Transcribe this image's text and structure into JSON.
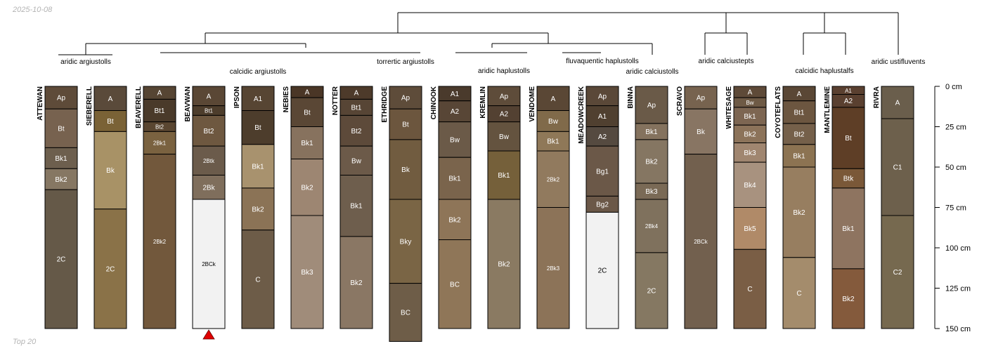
{
  "date_label": "2025-10-08",
  "footer_label": "Top 20",
  "depth_axis": {
    "unit": "cm",
    "max": 150,
    "ticks": [
      0,
      25,
      50,
      75,
      100,
      125,
      150
    ],
    "tick_labels": [
      "0 cm",
      "25 cm",
      "50 cm",
      "75 cm",
      "100 cm",
      "125 cm",
      "150 cm"
    ]
  },
  "group_labels": [
    "aridic argiustolls",
    "calcidic argiustolls",
    "torrertic argiustolls",
    "aridic haplustolls",
    "fluvaquentic haplustolls",
    "aridic calciustolls",
    "aridic calciustepts",
    "calcidic haplustalfs",
    "aridic ustifluvents"
  ],
  "profiles": [
    {
      "name": "ATTEWAN",
      "group": 0,
      "horizons": [
        {
          "name": "Ap",
          "top": 0,
          "bottom": 14,
          "color": "#5e4b39"
        },
        {
          "name": "Bt",
          "top": 14,
          "bottom": 38,
          "color": "#77624f"
        },
        {
          "name": "Bk1",
          "top": 38,
          "bottom": 51,
          "color": "#6d5f4e"
        },
        {
          "name": "Bk2",
          "top": 51,
          "bottom": 64,
          "color": "#867763"
        },
        {
          "name": "2C",
          "top": 64,
          "bottom": 150,
          "color": "#655948"
        }
      ]
    },
    {
      "name": "SIEBERELL",
      "group": 1,
      "horizons": [
        {
          "name": "A",
          "top": 0,
          "bottom": 15,
          "color": "#5a4a3a"
        },
        {
          "name": "Bt",
          "top": 15,
          "bottom": 28,
          "color": "#7a6236"
        },
        {
          "name": "Bk",
          "top": 28,
          "bottom": 76,
          "color": "#a89266"
        },
        {
          "name": "2C",
          "top": 76,
          "bottom": 150,
          "color": "#8a7248"
        }
      ]
    },
    {
      "name": "BEAVERELL",
      "group": 1,
      "horizons": [
        {
          "name": "A",
          "top": 0,
          "bottom": 8,
          "color": "#564533"
        },
        {
          "name": "Bt1",
          "top": 8,
          "bottom": 22,
          "color": "#4a3a2a"
        },
        {
          "name": "Bt2",
          "top": 22,
          "bottom": 28,
          "color": "#5a4631"
        },
        {
          "name": "2Bk1",
          "top": 28,
          "bottom": 42,
          "color": "#7a6240"
        },
        {
          "name": "2Bk2",
          "top": 42,
          "bottom": 150,
          "color": "#72583c"
        }
      ]
    },
    {
      "name": "BEAVWAN",
      "group": 1,
      "truncated": true,
      "horizons": [
        {
          "name": "A",
          "top": 0,
          "bottom": 12,
          "color": "#5a4735"
        },
        {
          "name": "Bt1",
          "top": 12,
          "bottom": 18,
          "color": "#4d3d2c"
        },
        {
          "name": "Bt2",
          "top": 18,
          "bottom": 37,
          "color": "#6e5840"
        },
        {
          "name": "2Btk",
          "top": 37,
          "bottom": 55,
          "color": "#6b5b4b"
        },
        {
          "name": "2Bk",
          "top": 55,
          "bottom": 70,
          "color": "#7f6e5c"
        },
        {
          "name": "2BCk",
          "top": 70,
          "bottom": 150,
          "color": "#f2f2f2"
        }
      ]
    },
    {
      "name": "IPSON",
      "group": 1,
      "horizons": [
        {
          "name": "A1",
          "top": 0,
          "bottom": 15,
          "color": "#574533"
        },
        {
          "name": "Bt",
          "top": 15,
          "bottom": 36,
          "color": "#4d3d2c"
        },
        {
          "name": "Bk1",
          "top": 36,
          "bottom": 63,
          "color": "#a8926e"
        },
        {
          "name": "Bk2",
          "top": 63,
          "bottom": 89,
          "color": "#8b7356"
        },
        {
          "name": "C",
          "top": 89,
          "bottom": 150,
          "color": "#6d5c48"
        }
      ]
    },
    {
      "name": "NEBIES",
      "group": 1,
      "horizons": [
        {
          "name": "A",
          "top": 0,
          "bottom": 7,
          "color": "#4a3626"
        },
        {
          "name": "Bt",
          "top": 7,
          "bottom": 25,
          "color": "#5a4735"
        },
        {
          "name": "Bk1",
          "top": 25,
          "bottom": 45,
          "color": "#87725e"
        },
        {
          "name": "Bk2",
          "top": 45,
          "bottom": 80,
          "color": "#9d8672"
        },
        {
          "name": "Bk3",
          "top": 80,
          "bottom": 150,
          "color": "#a08c7a"
        }
      ]
    },
    {
      "name": "NOTTER",
      "group": 1,
      "horizons": [
        {
          "name": "A",
          "top": 0,
          "bottom": 8,
          "color": "#4d3a2a"
        },
        {
          "name": "Bt1",
          "top": 8,
          "bottom": 18,
          "color": "#574535"
        },
        {
          "name": "Bt2",
          "top": 18,
          "bottom": 37,
          "color": "#5d4a3a"
        },
        {
          "name": "Bw",
          "top": 37,
          "bottom": 55,
          "color": "#6c5a49"
        },
        {
          "name": "Bk1",
          "top": 55,
          "bottom": 93,
          "color": "#6e5e4d"
        },
        {
          "name": "Bk2",
          "top": 93,
          "bottom": 150,
          "color": "#8a7764"
        }
      ]
    },
    {
      "name": "ETHRIDGE",
      "group": 2,
      "horizons": [
        {
          "name": "Ap",
          "top": 0,
          "bottom": 14,
          "color": "#5e4c3a"
        },
        {
          "name": "Bt",
          "top": 14,
          "bottom": 33,
          "color": "#6c563e"
        },
        {
          "name": "Bk",
          "top": 33,
          "bottom": 70,
          "color": "#715c40"
        },
        {
          "name": "Bky",
          "top": 70,
          "bottom": 122,
          "color": "#7a6545"
        },
        {
          "name": "BC",
          "top": 122,
          "bottom": 158,
          "color": "#6e5d48"
        }
      ]
    },
    {
      "name": "CHINOOK",
      "group": 3,
      "horizons": [
        {
          "name": "A1",
          "top": 0,
          "bottom": 9,
          "color": "#4a3a2c"
        },
        {
          "name": "A2",
          "top": 9,
          "bottom": 22,
          "color": "#584636"
        },
        {
          "name": "Bw",
          "top": 22,
          "bottom": 44,
          "color": "#6b5a48"
        },
        {
          "name": "Bk1",
          "top": 44,
          "bottom": 70,
          "color": "#7a644c"
        },
        {
          "name": "Bk2",
          "top": 70,
          "bottom": 95,
          "color": "#8e7558"
        },
        {
          "name": "BC",
          "top": 95,
          "bottom": 150,
          "color": "#8f7658"
        }
      ]
    },
    {
      "name": "KREMLIN",
      "group": 3,
      "horizons": [
        {
          "name": "Ap",
          "top": 0,
          "bottom": 12,
          "color": "#5e4c3a"
        },
        {
          "name": "A2",
          "top": 12,
          "bottom": 22,
          "color": "#534132"
        },
        {
          "name": "Bw",
          "top": 22,
          "bottom": 40,
          "color": "#64533f"
        },
        {
          "name": "Bk1",
          "top": 40,
          "bottom": 70,
          "color": "#75603a"
        },
        {
          "name": "Bk2",
          "top": 70,
          "bottom": 150,
          "color": "#8a7a62"
        }
      ]
    },
    {
      "name": "VENDOME",
      "group": 3,
      "horizons": [
        {
          "name": "A",
          "top": 0,
          "bottom": 15,
          "color": "#5a4735"
        },
        {
          "name": "Bw",
          "top": 15,
          "bottom": 28,
          "color": "#806a4a"
        },
        {
          "name": "Bk1",
          "top": 28,
          "bottom": 40,
          "color": "#8f7858"
        },
        {
          "name": "2Bk2",
          "top": 40,
          "bottom": 75,
          "color": "#917a5e"
        },
        {
          "name": "2Bk3",
          "top": 75,
          "bottom": 150,
          "color": "#8c7358"
        }
      ]
    },
    {
      "name": "MEADOWCREEK",
      "group": 4,
      "horizons": [
        {
          "name": "Ap",
          "top": 0,
          "bottom": 12,
          "color": "#5a4838"
        },
        {
          "name": "A1",
          "top": 12,
          "bottom": 25,
          "color": "#504030"
        },
        {
          "name": "A2",
          "top": 25,
          "bottom": 37,
          "color": "#554a40"
        },
        {
          "name": "Bg1",
          "top": 37,
          "bottom": 68,
          "color": "#6b5848"
        },
        {
          "name": "Bg2",
          "top": 68,
          "bottom": 78,
          "color": "#6b5848"
        },
        {
          "name": "2C",
          "top": 78,
          "bottom": 150,
          "color": "#f2f2f2"
        }
      ]
    },
    {
      "name": "BINNA",
      "group": 5,
      "horizons": [
        {
          "name": "Ap",
          "top": 0,
          "bottom": 23,
          "color": "#6a5a48"
        },
        {
          "name": "Bk1",
          "top": 23,
          "bottom": 33,
          "color": "#84725e"
        },
        {
          "name": "Bk2",
          "top": 33,
          "bottom": 60,
          "color": "#857662"
        },
        {
          "name": "Bk3",
          "top": 60,
          "bottom": 70,
          "color": "#7a6a56"
        },
        {
          "name": "2Bk4",
          "top": 70,
          "bottom": 103,
          "color": "#7f715d"
        },
        {
          "name": "2C",
          "top": 103,
          "bottom": 150,
          "color": "#857862"
        }
      ]
    },
    {
      "name": "SCRAVO",
      "group": 5,
      "horizons": [
        {
          "name": "Ap",
          "top": 0,
          "bottom": 14,
          "color": "#77634f"
        },
        {
          "name": "Bk",
          "top": 14,
          "bottom": 42,
          "color": "#887563"
        },
        {
          "name": "2BCk",
          "top": 42,
          "bottom": 150,
          "color": "#72604e"
        }
      ]
    },
    {
      "name": "WHITESAGE",
      "group": 6,
      "horizons": [
        {
          "name": "A",
          "top": 0,
          "bottom": 7,
          "color": "#5e4a38"
        },
        {
          "name": "Bw",
          "top": 7,
          "bottom": 13,
          "color": "#6e5a45"
        },
        {
          "name": "Bk1",
          "top": 13,
          "bottom": 24,
          "color": "#7d6652"
        },
        {
          "name": "Bk2",
          "top": 24,
          "bottom": 35,
          "color": "#8c735a"
        },
        {
          "name": "Bk3",
          "top": 35,
          "bottom": 47,
          "color": "#a08670"
        },
        {
          "name": "Bk4",
          "top": 47,
          "bottom": 75,
          "color": "#a8927f"
        },
        {
          "name": "Bk5",
          "top": 75,
          "bottom": 101,
          "color": "#b08a68"
        },
        {
          "name": "C",
          "top": 101,
          "bottom": 150,
          "color": "#7a5e45"
        }
      ]
    },
    {
      "name": "COYOTEFLATS",
      "group": 7,
      "horizons": [
        {
          "name": "A",
          "top": 0,
          "bottom": 9,
          "color": "#5a4735"
        },
        {
          "name": "Bt1",
          "top": 9,
          "bottom": 23,
          "color": "#6c5640"
        },
        {
          "name": "Bt2",
          "top": 23,
          "bottom": 36,
          "color": "#75604a"
        },
        {
          "name": "Bk1",
          "top": 36,
          "bottom": 50,
          "color": "#8c7352"
        },
        {
          "name": "Bk2",
          "top": 50,
          "bottom": 106,
          "color": "#977e60"
        },
        {
          "name": "C",
          "top": 106,
          "bottom": 150,
          "color": "#a48c6c"
        }
      ]
    },
    {
      "name": "MANTLEMINE",
      "group": 7,
      "horizons": [
        {
          "name": "A1",
          "top": 0,
          "bottom": 5,
          "color": "#5a4030"
        },
        {
          "name": "A2",
          "top": 5,
          "bottom": 13,
          "color": "#5a4030"
        },
        {
          "name": "Bt",
          "top": 13,
          "bottom": 51,
          "color": "#5e3e26"
        },
        {
          "name": "Btk",
          "top": 51,
          "bottom": 63,
          "color": "#7a5838"
        },
        {
          "name": "Bk1",
          "top": 63,
          "bottom": 113,
          "color": "#8e7460"
        },
        {
          "name": "Bk2",
          "top": 113,
          "bottom": 150,
          "color": "#845a3c"
        }
      ]
    },
    {
      "name": "RIVRA",
      "group": 8,
      "horizons": [
        {
          "name": "A",
          "top": 0,
          "bottom": 20,
          "color": "#6a5e4c"
        },
        {
          "name": "C1",
          "top": 20,
          "bottom": 80,
          "color": "#6d604c"
        },
        {
          "name": "C2",
          "top": 80,
          "bottom": 150,
          "color": "#76694f"
        }
      ]
    }
  ]
}
